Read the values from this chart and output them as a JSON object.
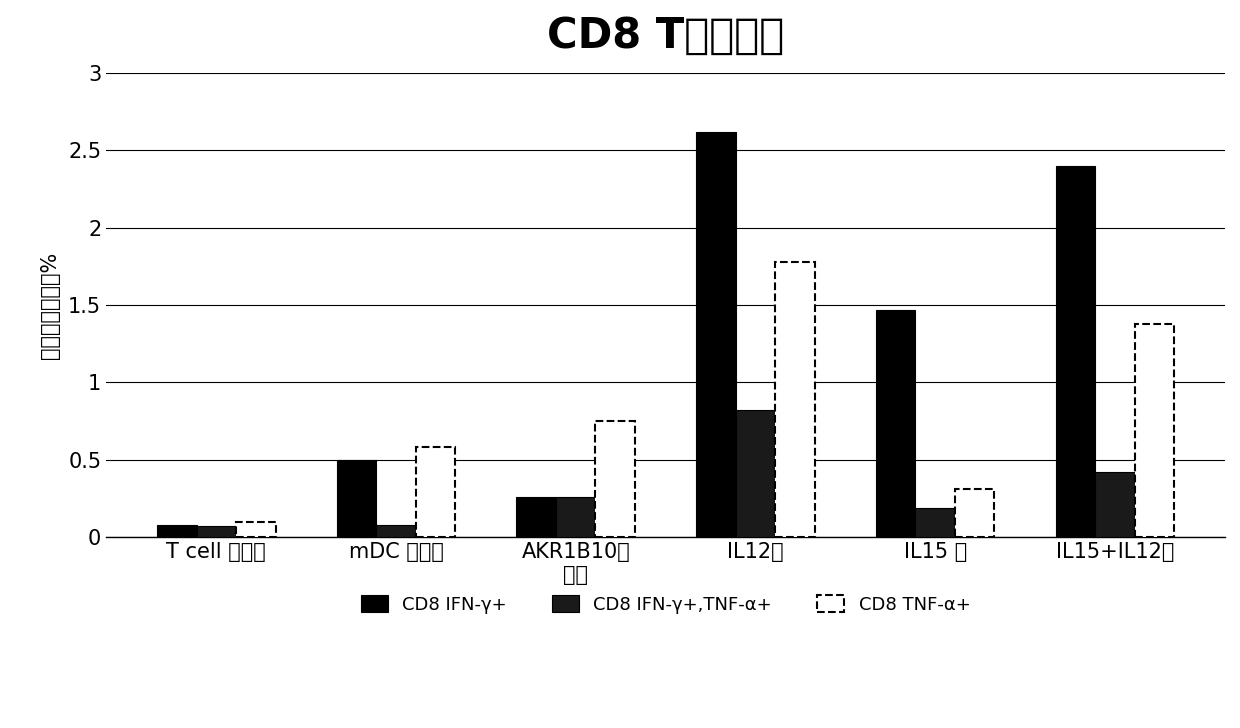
{
  "title": "CD8 T细胞应答",
  "ylabel": "阳性细胞比例，%",
  "categories": [
    "T cell 对照组",
    "mDC 对照组",
    "AKR1B10对\n照组",
    "IL12组",
    "IL15 组",
    "IL15+IL12组"
  ],
  "series": {
    "CD8 IFN-γ+": [
      0.08,
      0.5,
      0.26,
      2.62,
      1.47,
      2.4
    ],
    "CD8 IFN-γ+,TNF-α+": [
      0.07,
      0.08,
      0.26,
      0.82,
      0.19,
      0.42
    ],
    "CD8 TNF-α+": [
      0.1,
      0.58,
      0.75,
      1.78,
      0.31,
      1.38
    ]
  },
  "colors": {
    "CD8 IFN-γ+": "#000000",
    "CD8 IFN-γ+,TNF-α+": "#1a1a1a",
    "CD8 TNF-α+": "#ffffff"
  },
  "edge_colors": {
    "CD8 IFN-γ+": "#000000",
    "CD8 IFN-γ+,TNF-α+": "#000000",
    "CD8 TNF-α+": "#000000"
  },
  "legend_labels": [
    "CD8 IFN-γ+",
    "CD8 IFN-γ+,TNF-α+",
    "CD8 TNF-α+"
  ],
  "ylim": [
    0,
    3.0
  ],
  "yticks": [
    0,
    0.5,
    1.0,
    1.5,
    2.0,
    2.5,
    3.0
  ],
  "ytick_labels": [
    "0",
    "0.5",
    "1",
    "1.5",
    "2",
    "2.5",
    "3"
  ],
  "title_fontsize": 30,
  "axis_fontsize": 15,
  "tick_fontsize": 15,
  "legend_fontsize": 13,
  "bar_width": 0.22
}
